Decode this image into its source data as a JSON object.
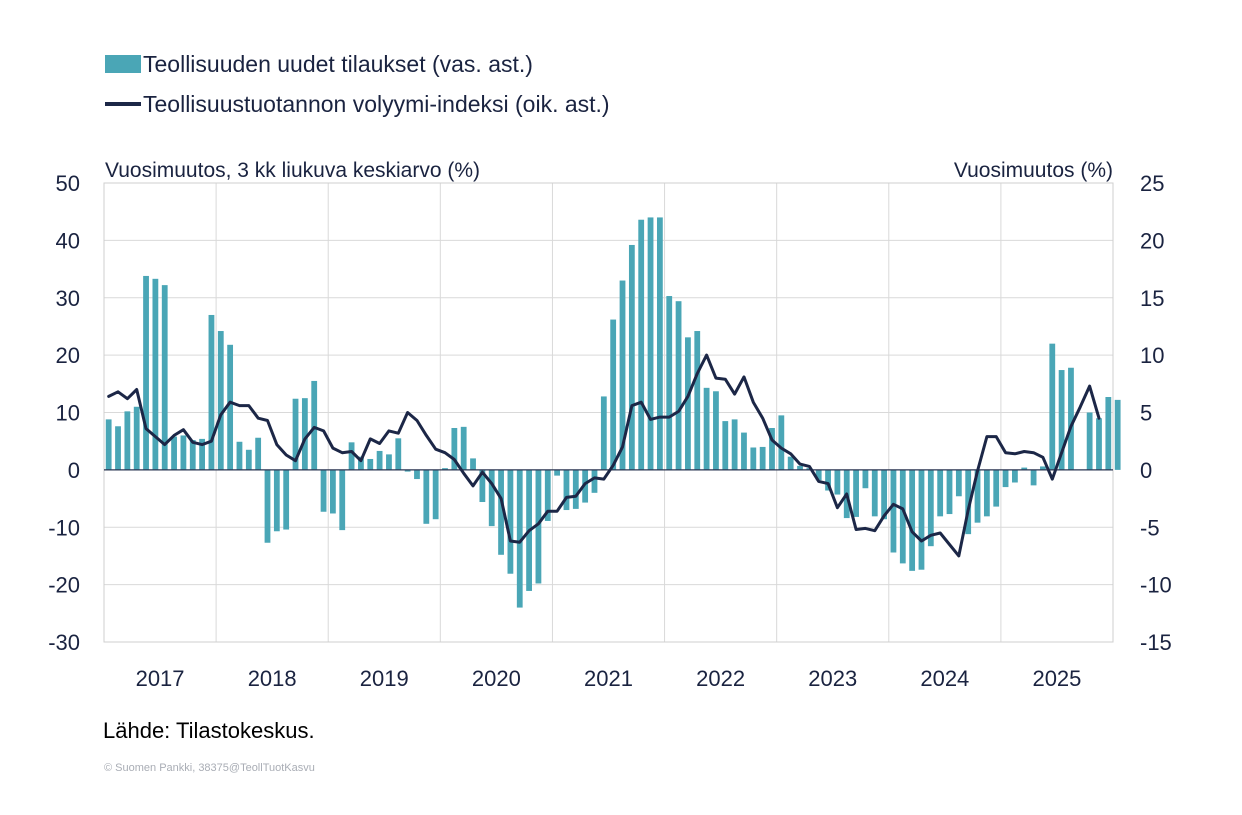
{
  "colors": {
    "bar": "#4aa6b6",
    "line": "#1c2747",
    "axis_text": "#1a2340",
    "grid": "#d9d9d9"
  },
  "legend": {
    "bar_label": "Teollisuuden uudet tilaukset (vas. ast.)",
    "line_label": "Teollisuustuotannon volyymi-indeksi (oik. ast.)"
  },
  "source": "Lähde: Tilastokeskus.",
  "copyright": "© Suomen Pankki, 38375@TeollTuotKasvu",
  "chart_data": {
    "type": "bar+line",
    "left_axis": {
      "label": "Vuosimuutos, 3 kk liukuva keskiarvo (%)",
      "range": [
        -30,
        50
      ],
      "ticks": [
        -30,
        -20,
        -10,
        0,
        10,
        20,
        30,
        40,
        50
      ]
    },
    "right_axis": {
      "label": "Vuosimuutos (%)",
      "range": [
        -15,
        25
      ],
      "ticks": [
        -15,
        -10,
        -5,
        0,
        5,
        10,
        15,
        20,
        25
      ]
    },
    "x_axis": {
      "start": "2017-01",
      "end": "2025-12",
      "tick_labels": [
        "2017",
        "2018",
        "2019",
        "2020",
        "2021",
        "2022",
        "2023",
        "2024",
        "2025"
      ]
    },
    "grid": true,
    "series": [
      {
        "name": "Teollisuuden uudet tilaukset (vas. ast.)",
        "type": "bar",
        "axis": "left",
        "start": "2017-01",
        "values": [
          8.8,
          7.6,
          10.2,
          11.0,
          33.8,
          33.3,
          32.2,
          5.8,
          6.0,
          5.2,
          5.4,
          27.0,
          24.2,
          21.8,
          4.9,
          3.5,
          5.6,
          -12.7,
          -10.7,
          -10.4,
          12.4,
          12.5,
          15.5,
          -7.3,
          -7.6,
          -10.5,
          4.8,
          2.3,
          1.9,
          3.3,
          2.7,
          5.5,
          -0.3,
          -1.6,
          -9.4,
          -8.6,
          0.3,
          7.3,
          7.5,
          2.0,
          -5.6,
          -9.8,
          -14.8,
          -18.1,
          -24.0,
          -21.1,
          -19.8,
          -8.9,
          -1.0,
          -7.0,
          -6.8,
          -5.7,
          -4.0,
          12.8,
          26.2,
          33.0,
          39.2,
          43.6,
          44.0,
          44.0,
          30.3,
          29.4,
          23.1,
          24.2,
          14.3,
          13.7,
          8.5,
          8.8,
          6.5,
          3.9,
          4.0,
          7.3,
          9.5,
          2.3,
          0.7,
          0.3,
          -1.8,
          -3.6,
          -4.3,
          -8.4,
          -8.2,
          -3.2,
          -8.1,
          -8.6,
          -14.4,
          -16.3,
          -17.6,
          -17.4,
          -13.3,
          -8.1,
          -7.7,
          -4.6,
          -11.2,
          -9.2,
          -8.1,
          -6.4,
          -3.0,
          -2.2,
          0.4,
          -2.7,
          0.6,
          22.0,
          17.4,
          17.8,
          0.0,
          10.0,
          9.0,
          12.7,
          12.2
        ]
      },
      {
        "name": "Teollisuustuotannon volyymi-indeksi (oik. ast.)",
        "type": "line",
        "axis": "right",
        "start": "2017-01",
        "values": [
          6.4,
          6.8,
          6.2,
          7.0,
          3.6,
          2.9,
          2.2,
          3.0,
          3.5,
          2.4,
          2.2,
          2.5,
          4.8,
          5.9,
          5.6,
          5.6,
          4.5,
          4.3,
          2.2,
          1.3,
          0.8,
          2.7,
          3.7,
          3.4,
          1.9,
          1.5,
          1.6,
          0.8,
          2.7,
          2.3,
          3.4,
          3.2,
          5.0,
          4.3,
          3.0,
          1.8,
          1.5,
          0.9,
          -0.3,
          -1.4,
          -0.2,
          -1.2,
          -2.5,
          -6.2,
          -6.3,
          -5.3,
          -4.7,
          -3.6,
          -3.6,
          -2.4,
          -2.3,
          -1.2,
          -0.7,
          -0.8,
          0.4,
          2.0,
          5.6,
          5.9,
          4.4,
          4.6,
          4.6,
          5.1,
          6.4,
          8.4,
          10.0,
          8.0,
          7.9,
          6.6,
          8.1,
          5.9,
          4.5,
          2.6,
          1.9,
          1.4,
          0.5,
          0.3,
          -1.0,
          -1.2,
          -3.3,
          -2.1,
          -5.2,
          -5.1,
          -5.3,
          -4.0,
          -3.0,
          -3.4,
          -5.4,
          -6.2,
          -5.7,
          -5.5,
          -6.5,
          -7.5,
          -3.5,
          -0.1,
          2.9,
          2.9,
          1.5,
          1.4,
          1.6,
          1.5,
          1.1,
          -0.8,
          1.5,
          3.8,
          5.5,
          7.3,
          4.5
        ]
      }
    ]
  }
}
